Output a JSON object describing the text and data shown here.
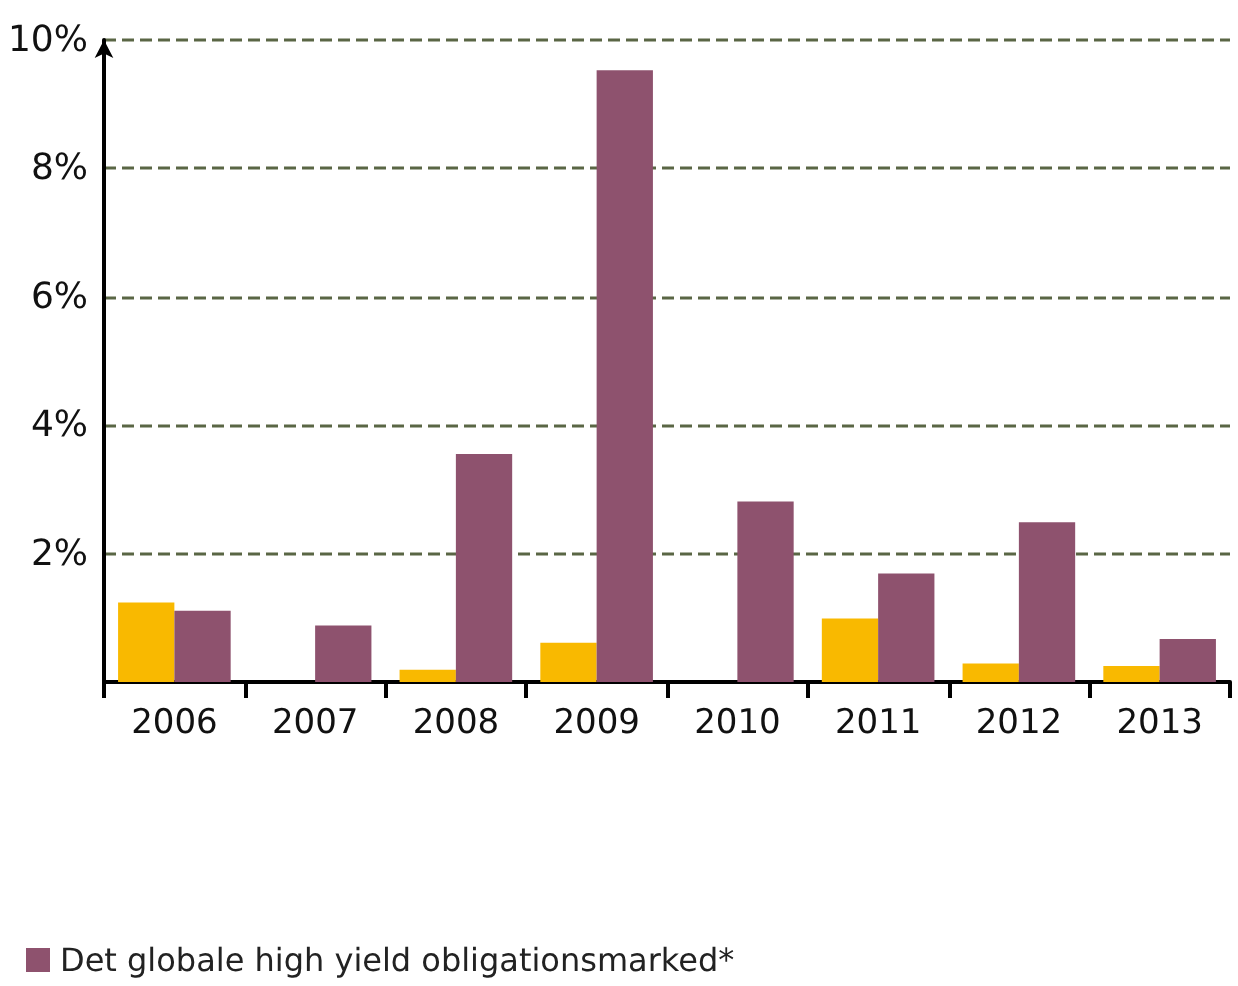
{
  "chart_data": {
    "type": "bar",
    "categories": [
      "2006",
      "2007",
      "2008",
      "2009",
      "2010",
      "2011",
      "2012",
      "2013"
    ],
    "series": [
      {
        "color": "#f9b900",
        "values": [
          1.24,
          0,
          0.19,
          0.61,
          0,
          0.99,
          0.29,
          0.25
        ]
      },
      {
        "name": "Det globale high yield obligationsmarked*",
        "color": "#8e526e",
        "values": [
          1.11,
          0.88,
          3.55,
          9.53,
          2.81,
          1.69,
          2.49,
          0.67
        ]
      }
    ],
    "ylim": [
      0,
      10
    ],
    "yticks": [
      {
        "value": 2,
        "label": "2%"
      },
      {
        "value": 4,
        "label": "4%"
      },
      {
        "value": 6,
        "label": "6%"
      },
      {
        "value": 8,
        "label": "8%"
      },
      {
        "value": 10,
        "label": "10%"
      }
    ],
    "grid": "y",
    "line_style": "dashed",
    "legend": "bottom"
  }
}
